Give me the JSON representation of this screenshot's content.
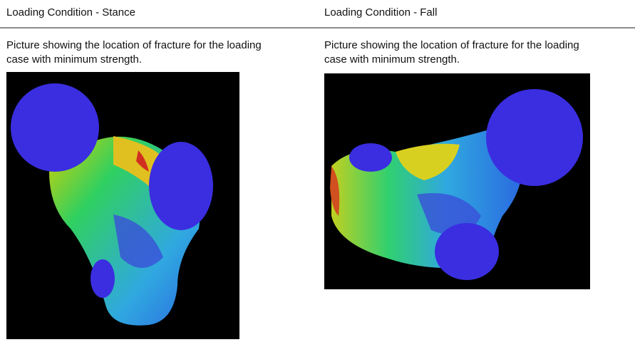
{
  "sections": [
    {
      "heading": "Loading Condition - Stance",
      "caption": "Picture showing the location of fracture for the loading case with minimum strength."
    },
    {
      "heading": "Loading Condition - Fall",
      "caption": "Picture showing the location of fracture for the loading case with minimum strength."
    }
  ]
}
